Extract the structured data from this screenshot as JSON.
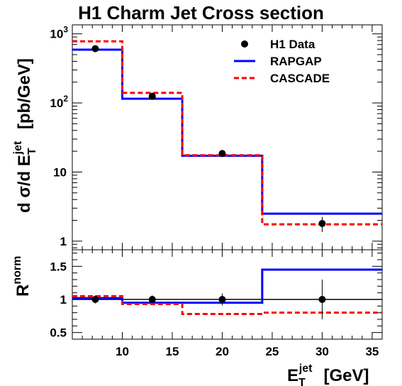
{
  "chart_data": [
    {
      "type": "step",
      "panel": "top",
      "title": "H1 Charm Jet Cross section",
      "ylabel": "d σ/d E_T^jet  [pb/GeV]",
      "ylabel_main": "d σ/d E",
      "ylabel_sub": "T",
      "ylabel_sup": "jet",
      "ylabel_units": "[pb/GeV]",
      "yscale": "log",
      "ylim": [
        0.75,
        1350
      ],
      "xlim": [
        5,
        36
      ],
      "y_ticks": [
        {
          "value": 1,
          "label": "1"
        },
        {
          "value": 10,
          "label": "10"
        },
        {
          "value": 100,
          "label": "10",
          "sup": "2"
        },
        {
          "value": 1000,
          "label": "10",
          "sup": "3"
        }
      ],
      "bin_edges": [
        5,
        10,
        16,
        24,
        36
      ],
      "series": [
        {
          "name": "H1 Data",
          "style": "points",
          "color": "#000000",
          "x": [
            7.3,
            13,
            20,
            30
          ],
          "y": [
            610,
            125,
            18.5,
            1.8
          ],
          "yerr": [
            20,
            6,
            1.2,
            0.45
          ]
        },
        {
          "name": "RAPGAP",
          "style": "step-solid",
          "color": "#0000ff",
          "values": [
            590,
            115,
            17.2,
            2.5
          ]
        },
        {
          "name": "CASCADE",
          "style": "step-dashed",
          "color": "#ff0000",
          "values": [
            780,
            140,
            17.5,
            1.75
          ]
        }
      ],
      "legend_position": "top-right"
    },
    {
      "type": "step",
      "panel": "bottom",
      "ylabel": "R^norm",
      "ylabel_main": "R",
      "ylabel_sup": "norm",
      "ylim": [
        0.4,
        1.75
      ],
      "xlim": [
        5,
        36
      ],
      "y_ticks": [
        {
          "value": 0.5,
          "label": "0.5"
        },
        {
          "value": 1,
          "label": "1"
        },
        {
          "value": 1.5,
          "label": "1.5"
        }
      ],
      "x_ticks": [
        {
          "value": 10,
          "label": "10"
        },
        {
          "value": 15,
          "label": "15"
        },
        {
          "value": 20,
          "label": "20"
        },
        {
          "value": 25,
          "label": "25"
        },
        {
          "value": 30,
          "label": "30"
        },
        {
          "value": 35,
          "label": "35"
        }
      ],
      "xlabel": "E_T^jet  [GeV]",
      "xlabel_main": "E",
      "xlabel_sub": "T",
      "xlabel_sup": "jet",
      "xlabel_units": "[GeV]",
      "reference_line": 1,
      "bin_edges": [
        5,
        10,
        16,
        24,
        36
      ],
      "series": [
        {
          "name": "H1 Data",
          "style": "points",
          "color": "#000000",
          "x": [
            7.3,
            13,
            20,
            30
          ],
          "y": [
            1.0,
            1.0,
            1.0,
            1.0
          ],
          "yerr": [
            0.06,
            0.06,
            0.09,
            0.3
          ]
        },
        {
          "name": "RAPGAP",
          "style": "step-solid",
          "color": "#0000ff",
          "values": [
            1.02,
            0.95,
            0.95,
            1.45
          ]
        },
        {
          "name": "CASCADE",
          "style": "step-dashed",
          "color": "#ff0000",
          "values": [
            1.05,
            0.93,
            0.78,
            0.8
          ]
        }
      ]
    }
  ]
}
